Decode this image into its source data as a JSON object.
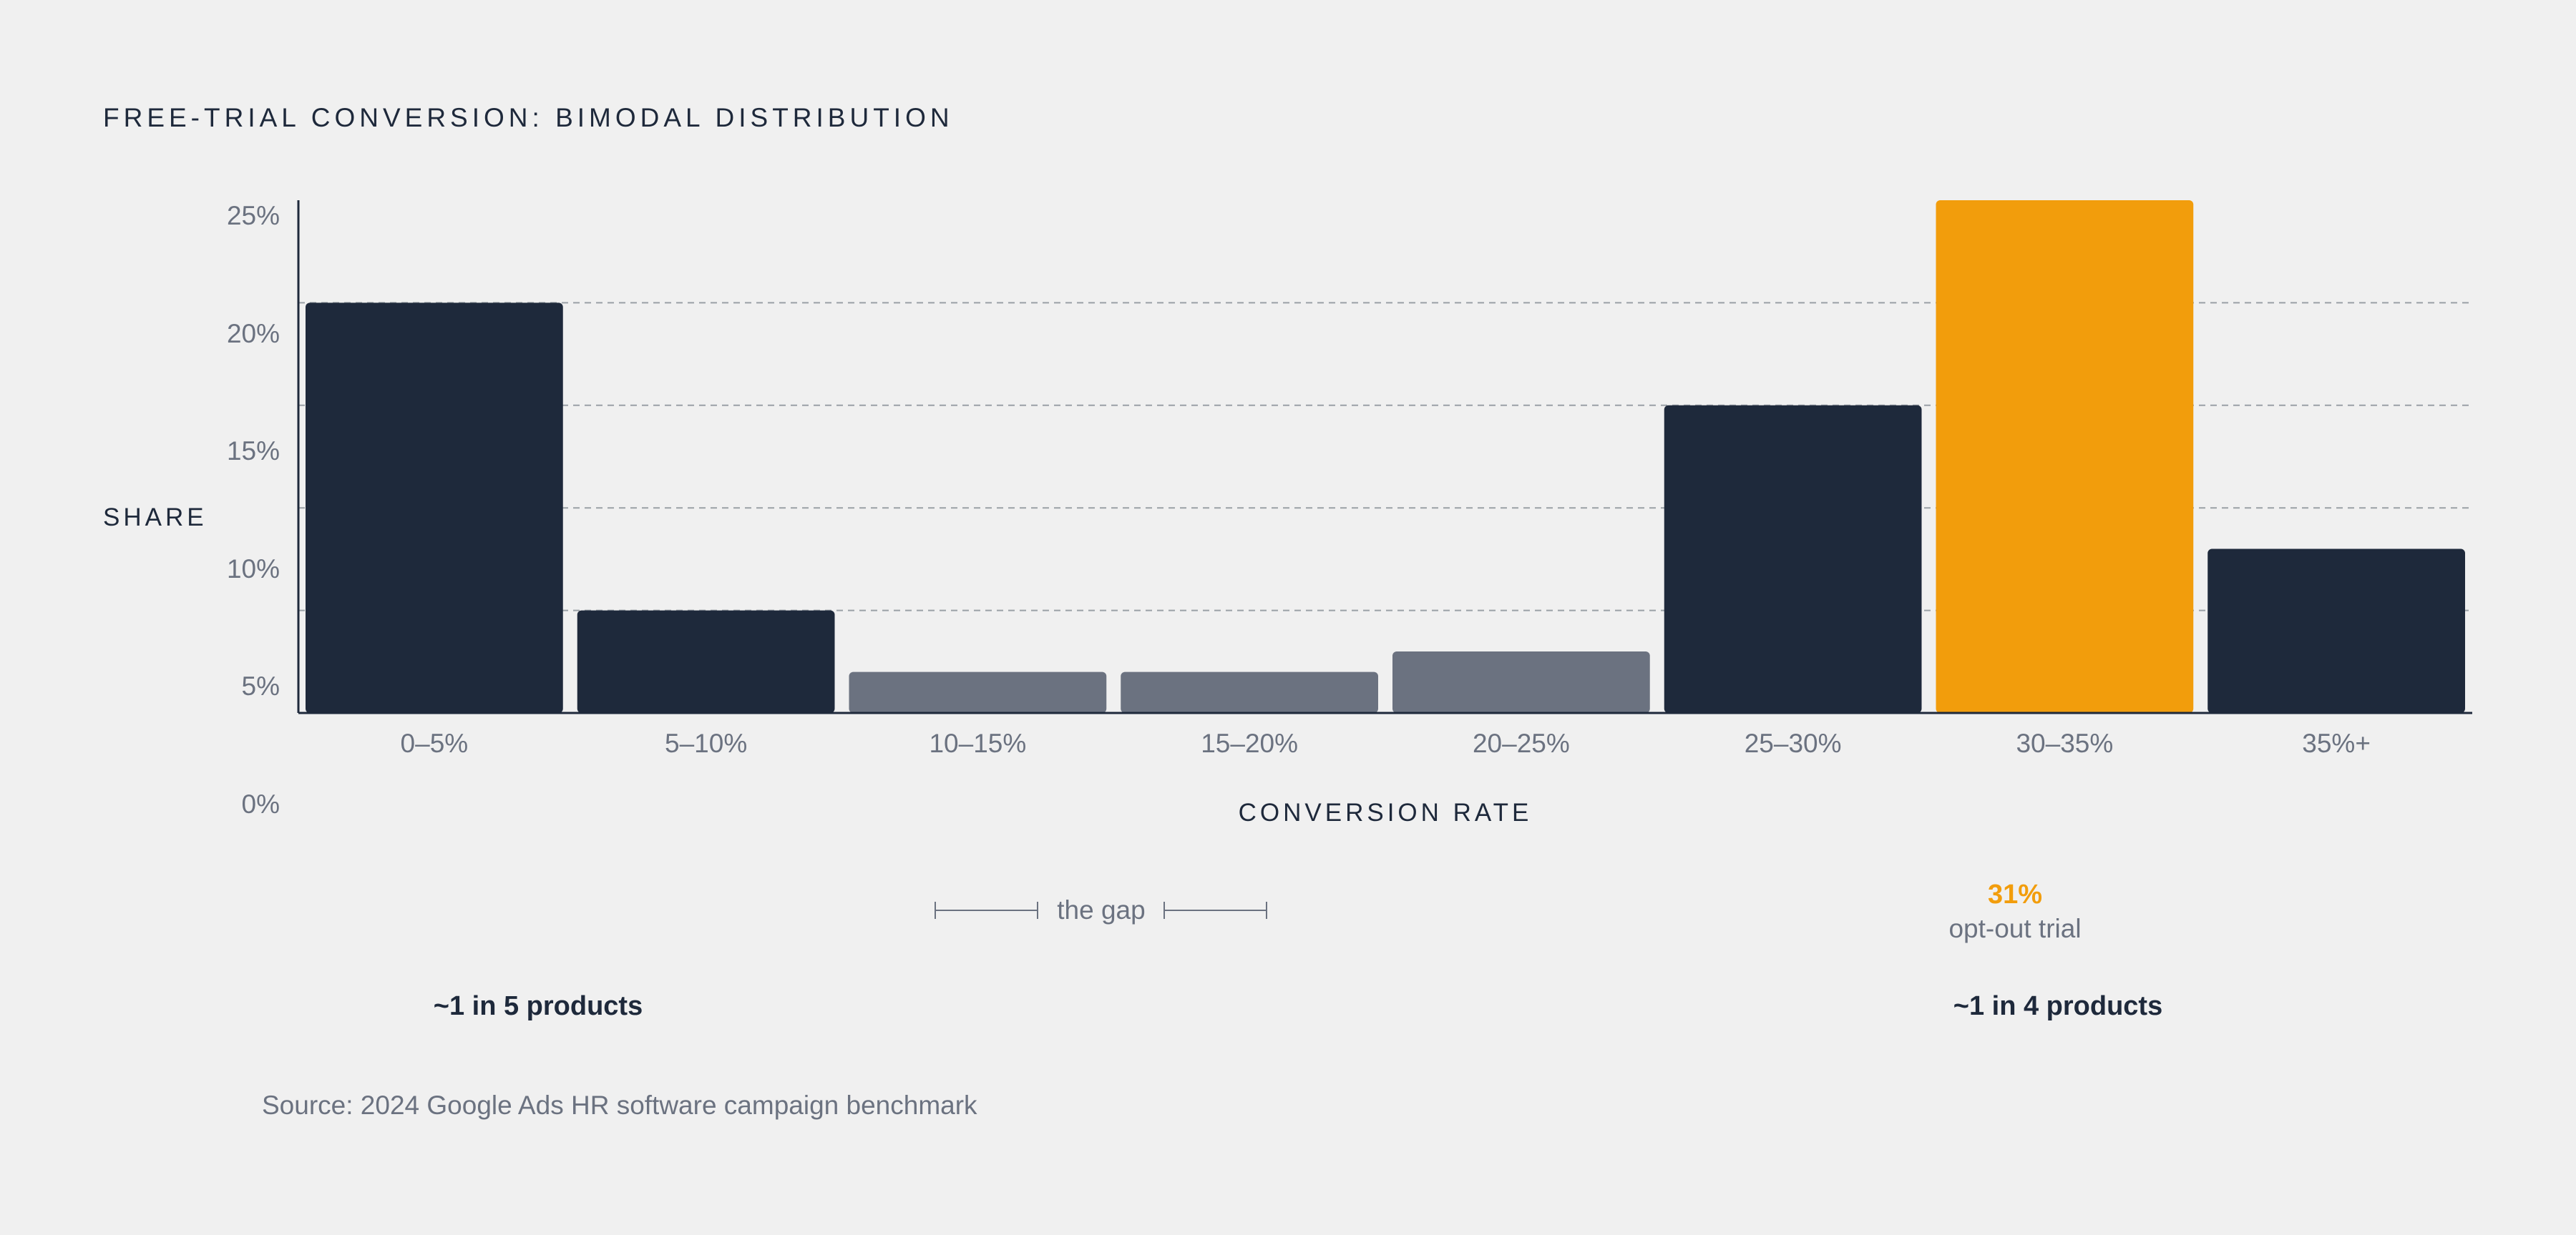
{
  "chart_data": {
    "type": "bar",
    "title": "FREE-TRIAL CONVERSION: BIMODAL DISTRIBUTION",
    "xlabel": "CONVERSION RATE",
    "ylabel": "SHARE",
    "categories": [
      "0–5%",
      "5–10%",
      "10–15%",
      "15–20%",
      "20–25%",
      "25–30%",
      "30–35%",
      "35%+"
    ],
    "values": [
      20,
      5,
      2,
      2,
      3,
      15,
      25,
      8
    ],
    "ylim": [
      0,
      25
    ],
    "yticks": [
      "0%",
      "5%",
      "10%",
      "15%",
      "20%",
      "25%"
    ],
    "grid": true,
    "colors": {
      "primary": "#1e293b",
      "muted": "#6b7280",
      "highlight": "#f29d0c",
      "text": "#1e293b",
      "subtle": "#6b7280",
      "gridline": "#9aa0a6"
    },
    "bar_roles": [
      "primary",
      "primary",
      "muted",
      "muted",
      "muted",
      "primary",
      "highlight",
      "primary"
    ],
    "annotations": {
      "gap_label": "the gap",
      "peak_value": "31%",
      "peak_label": "opt-out trial",
      "left_mode": "~1 in 5 products",
      "right_mode": "~1 in 4 products"
    },
    "source": "Source: 2024 Google Ads HR software campaign benchmark"
  }
}
